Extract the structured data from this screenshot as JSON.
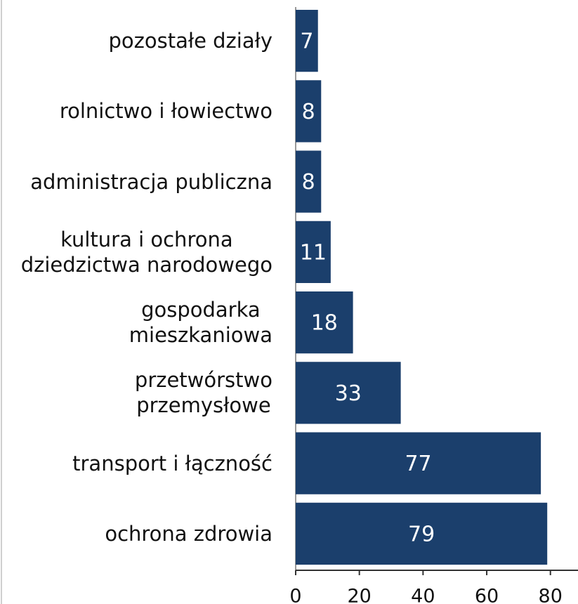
{
  "chart_data": {
    "type": "bar",
    "orientation": "horizontal",
    "categories": [
      "pozostałe działy",
      "rolnictwo i łowiectwo",
      "administracja publiczna",
      "kultura i ochrona\ndziedzictwa narodowego",
      "gospodarka\nmieszkaniowa",
      "przetwórstwo\nprzemysłowe",
      "transport i łączność",
      "ochrona zdrowia"
    ],
    "values": [
      7,
      8,
      8,
      11,
      18,
      33,
      77,
      79
    ],
    "color": "#1b3f6c",
    "xlim": [
      0,
      88
    ],
    "xticks": [
      0,
      20,
      40,
      60,
      80
    ]
  }
}
